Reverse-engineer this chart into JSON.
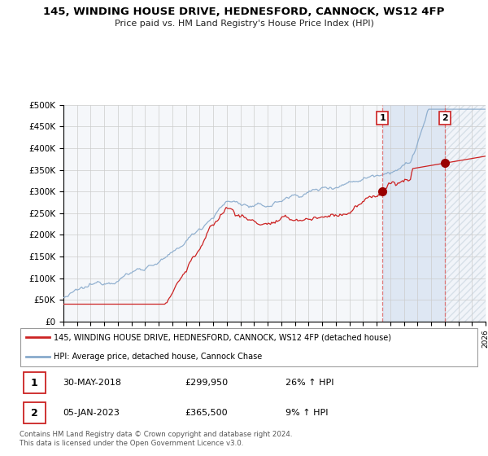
{
  "title": "145, WINDING HOUSE DRIVE, HEDNESFORD, CANNOCK, WS12 4FP",
  "subtitle": "Price paid vs. HM Land Registry's House Price Index (HPI)",
  "ylim": [
    0,
    500000
  ],
  "yticks": [
    0,
    50000,
    100000,
    150000,
    200000,
    250000,
    300000,
    350000,
    400000,
    450000,
    500000
  ],
  "ytick_labels": [
    "£0",
    "£50K",
    "£100K",
    "£150K",
    "£200K",
    "£250K",
    "£300K",
    "£350K",
    "£400K",
    "£450K",
    "£500K"
  ],
  "line_red_color": "#cc2222",
  "line_blue_color": "#88aacc",
  "vline_color": "#dd6666",
  "grid_color": "#cccccc",
  "bg_color": "#f0f4f8",
  "legend_line1": "145, WINDING HOUSE DRIVE, HEDNESFORD, CANNOCK, WS12 4FP (detached house)",
  "legend_line2": "HPI: Average price, detached house, Cannock Chase",
  "note1_label": "1",
  "note1_date": "30-MAY-2018",
  "note1_price": "£299,950",
  "note1_hpi": "26% ↑ HPI",
  "note2_label": "2",
  "note2_date": "05-JAN-2023",
  "note2_price": "£365,500",
  "note2_hpi": "9% ↑ HPI",
  "footer": "Contains HM Land Registry data © Crown copyright and database right 2024.\nThis data is licensed under the Open Government Licence v3.0.",
  "sale1_year": 2018.42,
  "sale1_price": 299950,
  "sale2_year": 2023.02,
  "sale2_price": 365500
}
